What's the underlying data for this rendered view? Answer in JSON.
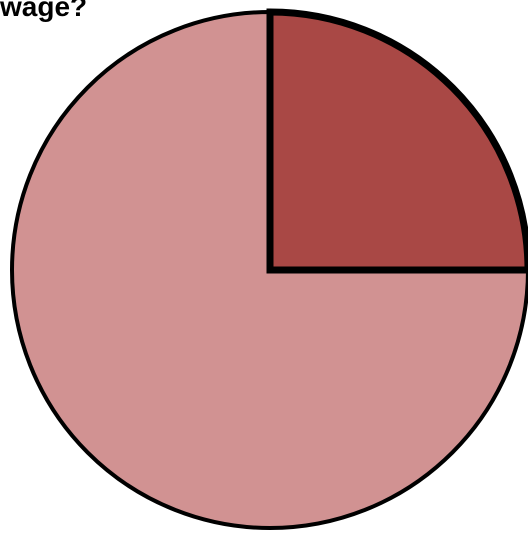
{
  "chart_data": {
    "type": "pie",
    "title": "wage?",
    "slices": [
      {
        "value": 25,
        "color": "#a94845"
      },
      {
        "value": 75,
        "color": "#d19292"
      }
    ],
    "start_angle_deg": 0,
    "direction": "clockwise",
    "outline_color": "#000000"
  }
}
